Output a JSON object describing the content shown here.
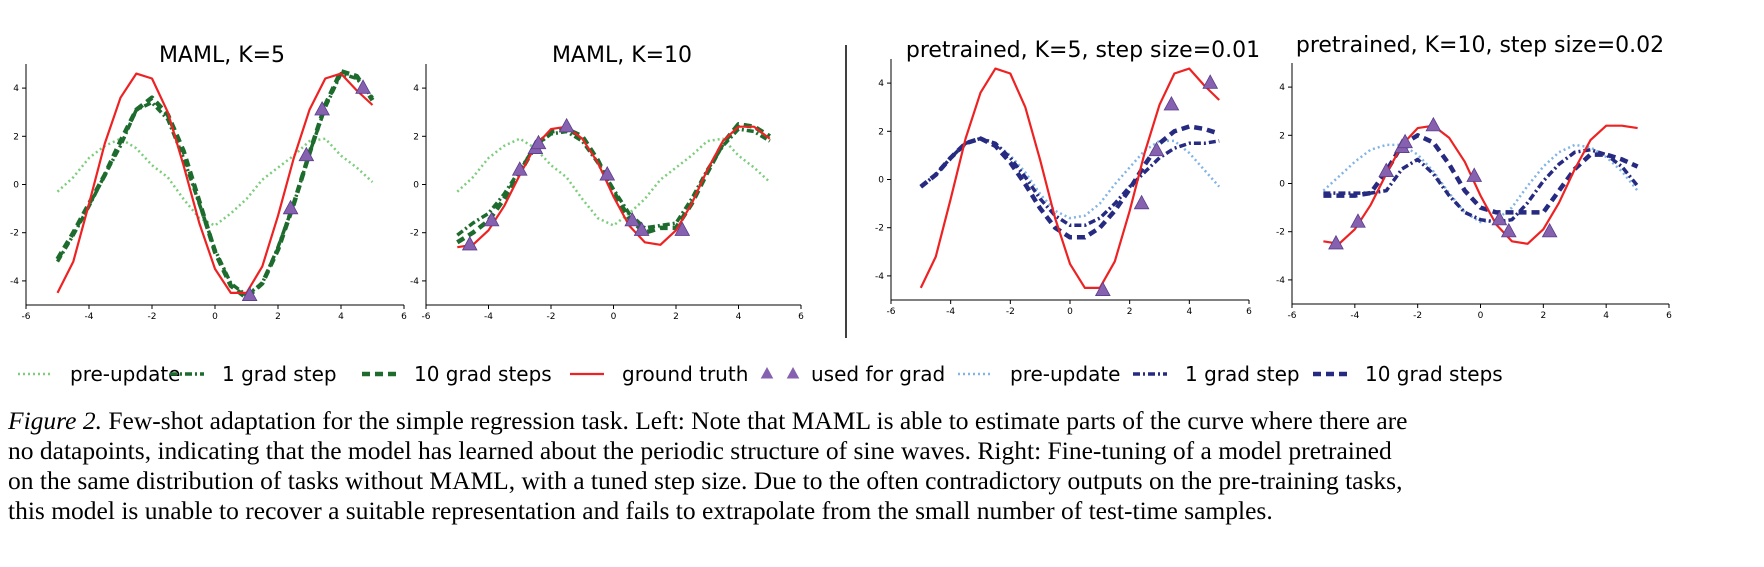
{
  "legend": [
    {
      "label": "pre-update",
      "kind": "line",
      "color": "#7ccd7c",
      "dash": "2 3",
      "width": 2.5
    },
    {
      "label": "1 grad step",
      "kind": "line",
      "color": "#1e6b2e",
      "dash": "7 3 2 3",
      "width": 3.5
    },
    {
      "label": "10 grad steps",
      "kind": "line",
      "color": "#1e6b2e",
      "dash": "8 5",
      "width": 4.5
    },
    {
      "label": "ground truth",
      "kind": "line",
      "color": "#ee2222",
      "dash": "",
      "width": 2.2
    },
    {
      "label": "used for grad",
      "kind": "marker",
      "color": "#8561b0",
      "dash": "",
      "width": 0
    },
    {
      "label": "pre-update",
      "kind": "line",
      "color": "#82b4e6",
      "dash": "2 3",
      "width": 2.5
    },
    {
      "label": "1 grad step",
      "kind": "line",
      "color": "#262a80",
      "dash": "7 3 2 3",
      "width": 3.5
    },
    {
      "label": "10 grad steps",
      "kind": "line",
      "color": "#262a80",
      "dash": "8 5",
      "width": 4.5
    }
  ],
  "caption": {
    "label": "Figure 2.",
    "lines": [
      " Few-shot adaptation for the simple regression task. Left: Note that MAML is able to estimate parts of the curve where there are",
      "no datapoints, indicating that the model has learned about the periodic structure of sine waves. Right: Fine-tuning of a model pretrained",
      "on the same distribution of tasks without MAML, with a tuned step size. Due to the often contradictory outputs on the pre-training tasks,",
      "this model is unable to recover a suitable representation and fails to extrapolate from the small number of test-time samples."
    ]
  },
  "chart_data": [
    {
      "type": "line",
      "title": "MAML, K=5",
      "xlim": [
        -6,
        6
      ],
      "ylim": [
        -5,
        5
      ],
      "xticks": [
        -6,
        -4,
        -2,
        0,
        2,
        4,
        6
      ],
      "yticks": [
        -4,
        -2,
        0,
        2,
        4
      ],
      "series": [
        {
          "name": "pre-update",
          "color": "#7ccd7c",
          "dash": "2 3",
          "width": 2.5,
          "x": [
            -5,
            -4.5,
            -4,
            -3.5,
            -3,
            -2.5,
            -2,
            -1.5,
            -1,
            -0.5,
            0,
            0.5,
            1,
            1.5,
            2,
            2.5,
            3,
            3.5,
            4,
            4.5,
            5
          ],
          "y": [
            -0.3,
            0.3,
            1.1,
            1.6,
            1.9,
            1.5,
            0.8,
            0.3,
            -0.6,
            -1.4,
            -1.7,
            -1.2,
            -0.6,
            0.2,
            0.7,
            1.2,
            1.8,
            1.9,
            1.2,
            0.7,
            0.1
          ]
        },
        {
          "name": "1 grad step",
          "color": "#1e6b2e",
          "dash": "7 3 2 3",
          "width": 3.5,
          "x": [
            -5,
            -4.5,
            -4,
            -3.5,
            -3,
            -2.5,
            -2,
            -1.5,
            -1,
            -0.5,
            0,
            0.5,
            1,
            1.5,
            2,
            2.5,
            3,
            3.5,
            4,
            4.5,
            5
          ],
          "y": [
            -3.2,
            -2.1,
            -0.9,
            0.4,
            1.6,
            3.1,
            3.4,
            2.7,
            1.1,
            -0.8,
            -2.7,
            -4.1,
            -4.6,
            -4.1,
            -2.6,
            -0.8,
            1.3,
            3.2,
            4.6,
            4.4,
            3.6
          ]
        },
        {
          "name": "10 grad steps",
          "color": "#1e6b2e",
          "dash": "8 5",
          "width": 4.5,
          "x": [
            -5,
            -4.5,
            -4,
            -3.5,
            -3,
            -2.5,
            -2,
            -1.5,
            -1,
            -0.5,
            0,
            0.5,
            1,
            1.5,
            2,
            2.5,
            3,
            3.5,
            4,
            4.5,
            5
          ],
          "y": [
            -3.1,
            -2.0,
            -0.8,
            0.4,
            1.8,
            3.1,
            3.6,
            2.9,
            1.4,
            -0.7,
            -2.8,
            -4.2,
            -4.7,
            -4.1,
            -2.7,
            -0.8,
            1.3,
            3.3,
            4.7,
            4.5,
            3.5
          ]
        },
        {
          "name": "ground truth",
          "color": "#ee2222",
          "dash": "",
          "width": 2.2,
          "x": [
            -5,
            -4.5,
            -4,
            -3.5,
            -3,
            -2.5,
            -2,
            -1.5,
            -1,
            -0.5,
            0,
            0.5,
            1,
            1.5,
            2,
            2.5,
            3,
            3.5,
            4,
            4.5,
            5
          ],
          "y": [
            -4.5,
            -3.2,
            -0.8,
            1.7,
            3.6,
            4.6,
            4.4,
            3.0,
            0.8,
            -1.6,
            -3.5,
            -4.5,
            -4.5,
            -3.4,
            -1.3,
            1.1,
            3.1,
            4.4,
            4.6,
            3.9,
            3.3
          ]
        },
        {
          "name": "used for grad",
          "color": "#8561b0",
          "marker": true,
          "x": [
            1.1,
            2.4,
            2.9,
            3.4,
            4.7
          ],
          "y": [
            -4.6,
            -1.0,
            1.2,
            3.1,
            4.0
          ]
        }
      ]
    },
    {
      "type": "line",
      "title": "MAML, K=10",
      "xlim": [
        -6,
        6
      ],
      "ylim": [
        -5,
        5
      ],
      "xticks": [
        -6,
        -4,
        -2,
        0,
        2,
        4,
        6
      ],
      "yticks": [
        -4,
        -2,
        0,
        2,
        4
      ],
      "series": [
        {
          "name": "pre-update",
          "color": "#7ccd7c",
          "dash": "2 3",
          "width": 2.5,
          "x": [
            -5,
            -4.5,
            -4,
            -3.5,
            -3,
            -2.5,
            -2,
            -1.5,
            -1,
            -0.5,
            0,
            0.5,
            1,
            1.5,
            2,
            2.5,
            3,
            3.5,
            4,
            4.5,
            5
          ],
          "y": [
            -0.3,
            0.3,
            1.1,
            1.6,
            1.9,
            1.5,
            0.8,
            0.3,
            -0.6,
            -1.4,
            -1.7,
            -1.2,
            -0.6,
            0.2,
            0.7,
            1.2,
            1.8,
            1.9,
            1.2,
            0.7,
            0.1
          ]
        },
        {
          "name": "1 grad step",
          "color": "#1e6b2e",
          "dash": "7 3 2 3",
          "width": 3.5,
          "x": [
            -5,
            -4.5,
            -4,
            -3.5,
            -3,
            -2.5,
            -2,
            -1.5,
            -1,
            -0.5,
            0,
            0.5,
            1,
            1.5,
            2,
            2.5,
            3,
            3.5,
            4,
            4.5,
            5
          ],
          "y": [
            -2.1,
            -1.6,
            -1.2,
            -0.4,
            0.6,
            1.6,
            2.1,
            2.2,
            1.8,
            0.9,
            -0.2,
            -1.2,
            -1.8,
            -1.7,
            -1.6,
            -0.6,
            0.6,
            1.6,
            2.3,
            2.2,
            1.8
          ]
        },
        {
          "name": "10 grad steps",
          "color": "#1e6b2e",
          "dash": "8 5",
          "width": 4.5,
          "x": [
            -5,
            -4.5,
            -4,
            -3.5,
            -3,
            -2.5,
            -2,
            -1.5,
            -1,
            -0.5,
            0,
            0.5,
            1,
            1.5,
            2,
            2.5,
            3,
            3.5,
            4,
            4.5,
            5
          ],
          "y": [
            -2.4,
            -2.0,
            -1.5,
            -0.6,
            0.5,
            1.6,
            2.2,
            2.3,
            2.0,
            1.0,
            -0.3,
            -1.4,
            -2.0,
            -1.8,
            -1.8,
            -0.8,
            0.5,
            1.7,
            2.5,
            2.4,
            2.0
          ]
        },
        {
          "name": "ground truth",
          "color": "#ee2222",
          "dash": "",
          "width": 2.2,
          "x": [
            -5,
            -4.5,
            -4,
            -3.5,
            -3,
            -2.5,
            -2,
            -1.5,
            -1,
            -0.5,
            0,
            0.5,
            1,
            1.5,
            2,
            2.5,
            3,
            3.5,
            4,
            4.5,
            5
          ],
          "y": [
            -2.6,
            -2.5,
            -1.9,
            -0.9,
            0.4,
            1.6,
            2.3,
            2.4,
            1.9,
            0.9,
            -0.5,
            -1.7,
            -2.4,
            -2.5,
            -1.9,
            -0.8,
            0.6,
            1.8,
            2.4,
            2.4,
            1.9
          ]
        },
        {
          "name": "used for grad",
          "color": "#8561b0",
          "marker": true,
          "x": [
            -4.6,
            -3.9,
            -3.0,
            -2.5,
            -2.4,
            -1.5,
            -0.2,
            0.6,
            0.9,
            2.2
          ],
          "y": [
            -2.5,
            -1.5,
            0.6,
            1.5,
            1.7,
            2.4,
            0.4,
            -1.5,
            -1.9,
            -1.9
          ]
        }
      ]
    },
    {
      "type": "line",
      "title": "pretrained, K=5, step size=0.01",
      "xlim": [
        -6,
        6
      ],
      "ylim": [
        -5,
        5
      ],
      "xticks": [
        -6,
        -4,
        -2,
        0,
        2,
        4,
        6
      ],
      "yticks": [
        -4,
        -2,
        0,
        2,
        4
      ],
      "series": [
        {
          "name": "pre-update",
          "color": "#82b4e6",
          "dash": "2 3",
          "width": 2.5,
          "x": [
            -5,
            -4.5,
            -4,
            -3.5,
            -3,
            -2.5,
            -2,
            -1.5,
            -1,
            -0.5,
            0,
            0.5,
            1,
            1.5,
            2,
            2.5,
            3,
            3.5,
            4,
            4.5,
            5
          ],
          "y": [
            -0.3,
            0.2,
            0.9,
            1.5,
            1.7,
            1.5,
            1.0,
            0.3,
            -0.6,
            -1.3,
            -1.6,
            -1.5,
            -1.0,
            -0.2,
            0.5,
            1.2,
            1.6,
            1.6,
            1.1,
            0.4,
            -0.3
          ]
        },
        {
          "name": "1 grad step",
          "color": "#262a80",
          "dash": "7 3 2 3",
          "width": 3.5,
          "x": [
            -5,
            -4.5,
            -4,
            -3.5,
            -3,
            -2.5,
            -2,
            -1.5,
            -1,
            -0.5,
            0,
            0.5,
            1,
            1.5,
            2,
            2.5,
            3,
            3.5,
            4,
            4.5,
            5
          ],
          "y": [
            -0.3,
            0.2,
            0.9,
            1.5,
            1.7,
            1.5,
            0.9,
            0.1,
            -0.8,
            -1.5,
            -1.9,
            -1.9,
            -1.6,
            -1.0,
            -0.3,
            0.3,
            0.9,
            1.3,
            1.5,
            1.5,
            1.6
          ]
        },
        {
          "name": "10 grad steps",
          "color": "#262a80",
          "dash": "8 5",
          "width": 4.5,
          "x": [
            -5,
            -4.5,
            -4,
            -3.5,
            -3,
            -2.5,
            -2,
            -1.5,
            -1,
            -0.5,
            0,
            0.5,
            1,
            1.5,
            2,
            2.5,
            3,
            3.5,
            4,
            4.5,
            5
          ],
          "y": [
            -0.3,
            0.2,
            0.9,
            1.5,
            1.7,
            1.4,
            0.7,
            -0.2,
            -1.2,
            -2.0,
            -2.4,
            -2.4,
            -2.0,
            -1.3,
            -0.4,
            0.6,
            1.5,
            2.0,
            2.2,
            2.1,
            1.9
          ]
        },
        {
          "name": "ground truth",
          "color": "#ee2222",
          "dash": "",
          "width": 2.2,
          "x": [
            -5,
            -4.5,
            -4,
            -3.5,
            -3,
            -2.5,
            -2,
            -1.5,
            -1,
            -0.5,
            0,
            0.5,
            1,
            1.5,
            2,
            2.5,
            3,
            3.5,
            4,
            4.5,
            5
          ],
          "y": [
            -4.5,
            -3.2,
            -0.8,
            1.7,
            3.6,
            4.6,
            4.4,
            3.0,
            0.8,
            -1.6,
            -3.5,
            -4.5,
            -4.5,
            -3.4,
            -1.3,
            1.1,
            3.1,
            4.4,
            4.6,
            3.9,
            3.3
          ]
        },
        {
          "name": "used for grad",
          "color": "#8561b0",
          "marker": true,
          "x": [
            1.1,
            2.4,
            2.9,
            3.4,
            4.7
          ],
          "y": [
            -4.6,
            -1.0,
            1.2,
            3.1,
            4.0
          ]
        }
      ]
    },
    {
      "type": "line",
      "title": "pretrained, K=10, step size=0.02",
      "xlim": [
        -6,
        6
      ],
      "ylim": [
        -5,
        5
      ],
      "xticks": [
        -6,
        -4,
        -2,
        0,
        2,
        4,
        6
      ],
      "yticks": [
        -4,
        -2,
        0,
        2,
        4
      ],
      "series": [
        {
          "name": "pre-update",
          "color": "#82b4e6",
          "dash": "2 3",
          "width": 2.5,
          "x": [
            -5,
            -4.5,
            -4,
            -3.5,
            -3,
            -2.5,
            -2,
            -1.5,
            -1,
            -0.5,
            0,
            0.5,
            1,
            1.5,
            2,
            2.5,
            3,
            3.5,
            4,
            4.5,
            5
          ],
          "y": [
            -0.3,
            0.3,
            0.9,
            1.4,
            1.6,
            1.6,
            1.2,
            0.5,
            -0.4,
            -1.2,
            -1.6,
            -1.5,
            -1.0,
            -0.1,
            0.7,
            1.3,
            1.6,
            1.5,
            1.1,
            0.5,
            -0.3
          ]
        },
        {
          "name": "1 grad step",
          "color": "#262a80",
          "dash": "7 3 2 3",
          "width": 3.5,
          "x": [
            -5,
            -4.5,
            -4,
            -3.5,
            -3,
            -2.5,
            -2,
            -1.5,
            -1,
            -0.5,
            0,
            0.5,
            1,
            1.5,
            2,
            2.5,
            3,
            3.5,
            4,
            4.5,
            5
          ],
          "y": [
            -0.4,
            -0.4,
            -0.4,
            -0.4,
            -0.3,
            0.6,
            1.0,
            0.4,
            -0.5,
            -1.2,
            -1.5,
            -1.6,
            -1.5,
            -0.8,
            0.1,
            0.8,
            1.3,
            1.4,
            1.2,
            0.7,
            -0.1
          ]
        },
        {
          "name": "10 grad steps",
          "color": "#262a80",
          "dash": "8 5",
          "width": 4.5,
          "x": [
            -5,
            -4.5,
            -4,
            -3.5,
            -3,
            -2.5,
            -2,
            -1.5,
            -1,
            -0.5,
            0,
            0.5,
            1,
            1.5,
            2,
            2.5,
            3,
            3.5,
            4,
            4.5,
            5
          ],
          "y": [
            -0.5,
            -0.5,
            -0.5,
            -0.4,
            0.5,
            1.6,
            2.0,
            1.7,
            0.8,
            -0.3,
            -1.0,
            -1.2,
            -1.2,
            -1.2,
            -1.2,
            -0.3,
            0.6,
            1.2,
            1.2,
            1.0,
            0.7
          ]
        },
        {
          "name": "ground truth",
          "color": "#ee2222",
          "dash": "",
          "width": 2.2,
          "x": [
            -5,
            -4.5,
            -4,
            -3.5,
            -3,
            -2.5,
            -2,
            -1.5,
            -1,
            -0.5,
            0,
            0.5,
            1,
            1.5,
            2,
            2.5,
            3,
            3.5,
            4,
            4.5,
            5
          ],
          "y": [
            -2.4,
            -2.5,
            -1.9,
            -0.9,
            0.4,
            1.6,
            2.3,
            2.4,
            1.9,
            0.9,
            -0.5,
            -1.7,
            -2.4,
            -2.5,
            -1.9,
            -0.8,
            0.6,
            1.8,
            2.4,
            2.4,
            2.3
          ]
        },
        {
          "name": "used for grad",
          "color": "#8561b0",
          "marker": true,
          "x": [
            -4.6,
            -3.9,
            -3.0,
            -2.5,
            -2.4,
            -1.5,
            -0.2,
            0.6,
            0.9,
            2.2
          ],
          "y": [
            -2.5,
            -1.6,
            0.5,
            1.5,
            1.7,
            2.4,
            0.3,
            -1.5,
            -2.0,
            -2.0
          ]
        }
      ]
    }
  ]
}
